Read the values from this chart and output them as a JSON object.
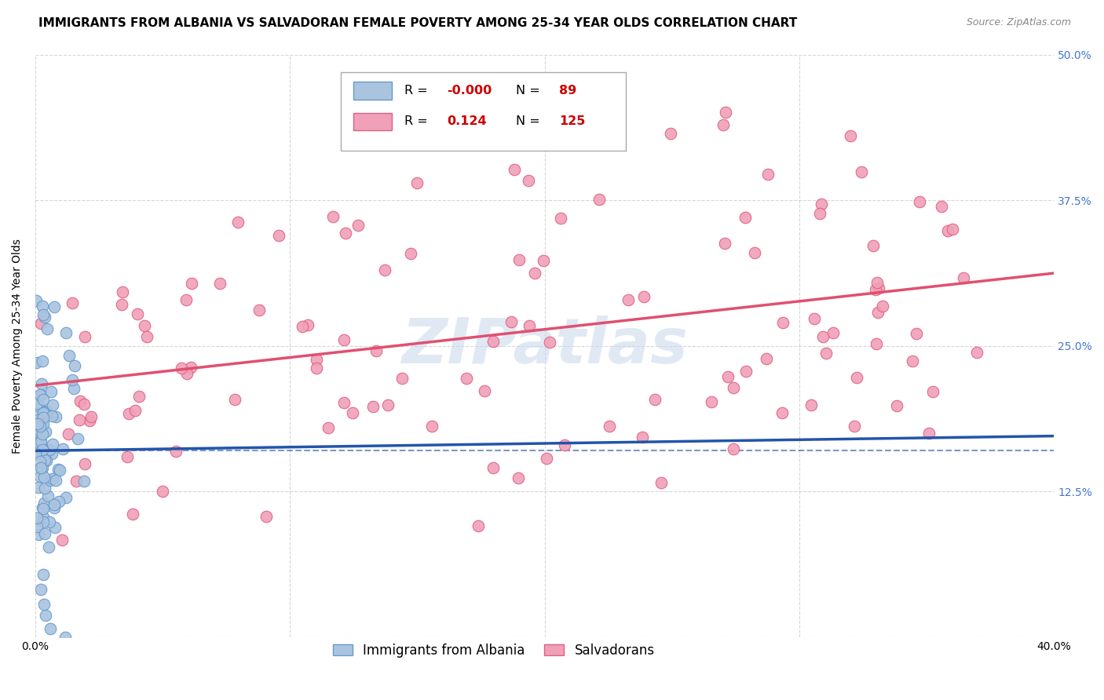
{
  "title": "IMMIGRANTS FROM ALBANIA VS SALVADORAN FEMALE POVERTY AMONG 25-34 YEAR OLDS CORRELATION CHART",
  "source": "Source: ZipAtlas.com",
  "ylabel": "Female Poverty Among 25-34 Year Olds",
  "xlim": [
    0.0,
    0.4
  ],
  "ylim": [
    0.0,
    0.5
  ],
  "xticks": [
    0.0,
    0.1,
    0.2,
    0.3,
    0.4
  ],
  "xtick_labels": [
    "0.0%",
    "",
    "",
    "",
    "40.0%"
  ],
  "ytick_labels_right": [
    "12.5%",
    "25.0%",
    "37.5%",
    "50.0%"
  ],
  "yticks_right": [
    0.125,
    0.25,
    0.375,
    0.5
  ],
  "yticks": [
    0.0,
    0.125,
    0.25,
    0.375,
    0.5
  ],
  "grid_color": "#cccccc",
  "background_color": "#ffffff",
  "albania_color": "#aac4e0",
  "albania_edge_color": "#6699cc",
  "salvador_color": "#f0a0b8",
  "salvador_edge_color": "#e06080",
  "albania_R": -0.0,
  "albania_N": 89,
  "salvador_R": 0.124,
  "salvador_N": 125,
  "albania_line_color": "#2255aa",
  "salvador_line_color": "#e05070",
  "watermark": "ZIPatlas",
  "legend_label_albania": "Immigrants from Albania",
  "legend_label_salvador": "Salvadorans",
  "title_fontsize": 11,
  "axis_label_fontsize": 10,
  "tick_fontsize": 10,
  "legend_r_color": "#cc0000",
  "legend_n_color": "#cc0000"
}
